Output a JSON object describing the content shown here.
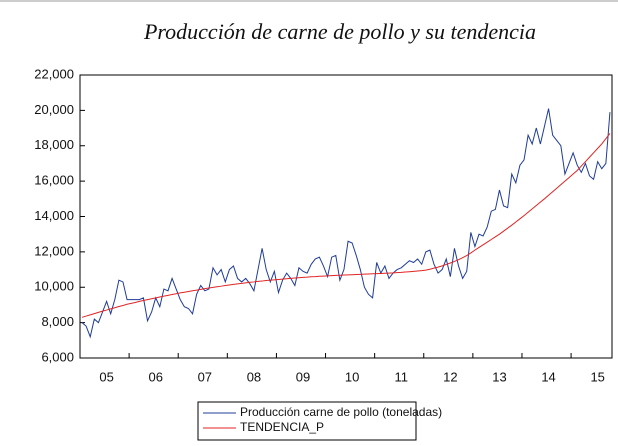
{
  "chart_data": {
    "type": "line",
    "title": "Producción de carne de pollo y su tendencia",
    "categories": [
      null,
      null,
      null,
      null,
      null,
      null,
      "05",
      null,
      null,
      null,
      null,
      null,
      null,
      null,
      null,
      null,
      null,
      null,
      "06",
      null,
      null,
      null,
      null,
      null,
      null,
      null,
      null,
      null,
      null,
      null,
      "07",
      null,
      null,
      null,
      null,
      null,
      null,
      null,
      null,
      null,
      null,
      null,
      "08",
      null,
      null,
      null,
      null,
      null,
      null,
      null,
      null,
      null,
      null,
      null,
      "09",
      null,
      null,
      null,
      null,
      null,
      null,
      null,
      null,
      null,
      null,
      null,
      "10",
      null,
      null,
      null,
      null,
      null,
      null,
      null,
      null,
      null,
      null,
      null,
      "11",
      null,
      null,
      null,
      null,
      null,
      null,
      null,
      null,
      null,
      null,
      null,
      "12",
      null,
      null,
      null,
      null,
      null,
      null,
      null,
      null,
      null,
      null,
      null,
      "13",
      null,
      null,
      null,
      null,
      null,
      null,
      null,
      null,
      null,
      null,
      null,
      "14",
      null,
      null,
      null,
      null,
      null,
      null,
      null,
      null,
      null,
      null,
      null,
      "15",
      null,
      null,
      null
    ],
    "series": [
      {
        "name": "Producción carne de pollo (toneladas)",
        "color": "#1f3c98",
        "values": [
          8000,
          7800,
          7200,
          8200,
          8000,
          8600,
          9200,
          8500,
          9300,
          10400,
          10300,
          9300,
          9300,
          9300,
          9300,
          9400,
          8100,
          8600,
          9400,
          8900,
          9900,
          9800,
          10500,
          9900,
          9300,
          8900,
          8800,
          8500,
          9600,
          10100,
          9800,
          9900,
          11100,
          10700,
          11000,
          10300,
          11000,
          11200,
          10500,
          10300,
          10500,
          10200,
          9800,
          11000,
          12200,
          11000,
          10300,
          10900,
          9700,
          10400,
          10800,
          10500,
          10100,
          11100,
          10900,
          10800,
          11300,
          11600,
          11700,
          11200,
          10600,
          11700,
          11800,
          10400,
          11000,
          12600,
          12500,
          11800,
          11000,
          10000,
          9600,
          9400,
          11400,
          10800,
          11200,
          10500,
          10800,
          11000,
          11100,
          11300,
          11500,
          11400,
          11600,
          11300,
          12000,
          12100,
          11300,
          10800,
          11000,
          11600,
          10600,
          12200,
          11200,
          10500,
          10900,
          13100,
          12300,
          13000,
          12900,
          13400,
          14300,
          14400,
          15500,
          14600,
          14500,
          16400,
          15900,
          16900,
          17200,
          18600,
          18100,
          19000,
          18100,
          19100,
          20100,
          18600,
          18300,
          18000,
          16400,
          17000,
          17600,
          16900,
          16500,
          17000,
          16300,
          16100,
          17100,
          16700,
          17000,
          19900
        ]
      },
      {
        "name": "TENDENCIA_P",
        "color": "#e02424",
        "values": [
          8300,
          8370,
          8440,
          8510,
          8580,
          8650,
          8710,
          8780,
          8840,
          8910,
          8970,
          9040,
          9090,
          9140,
          9200,
          9250,
          9300,
          9350,
          9400,
          9450,
          9500,
          9540,
          9590,
          9630,
          9680,
          9720,
          9760,
          9800,
          9840,
          9880,
          9920,
          9960,
          9990,
          10030,
          10060,
          10100,
          10130,
          10160,
          10190,
          10220,
          10250,
          10280,
          10300,
          10330,
          10350,
          10380,
          10400,
          10420,
          10440,
          10460,
          10480,
          10500,
          10520,
          10540,
          10560,
          10570,
          10590,
          10600,
          10620,
          10630,
          10640,
          10660,
          10670,
          10680,
          10690,
          10700,
          10710,
          10720,
          10730,
          10740,
          10750,
          10760,
          10770,
          10780,
          10790,
          10800,
          10810,
          10830,
          10840,
          10860,
          10880,
          10900,
          10920,
          10940,
          10970,
          11020,
          11080,
          11140,
          11210,
          11290,
          11370,
          11460,
          11560,
          11670,
          11790,
          11940,
          12100,
          12250,
          12400,
          12550,
          12700,
          12850,
          13000,
          13170,
          13340,
          13510,
          13690,
          13870,
          14050,
          14240,
          14430,
          14620,
          14810,
          15000,
          15200,
          15400,
          15600,
          15800,
          16000,
          16200,
          16400,
          16600,
          16850,
          17100,
          17350,
          17600,
          17850,
          18100,
          18400,
          18700
        ]
      }
    ],
    "ylim": [
      6000,
      22000
    ],
    "yticks": [
      {
        "value": 6000,
        "label": "6,000"
      },
      {
        "value": 8000,
        "label": "8,000"
      },
      {
        "value": 10000,
        "label": "10,000"
      },
      {
        "value": 12000,
        "label": "12,000"
      },
      {
        "value": 14000,
        "label": "14,000"
      },
      {
        "value": 16000,
        "label": "16,000"
      },
      {
        "value": 18000,
        "label": "18,000"
      },
      {
        "value": 20000,
        "label": "20,000"
      },
      {
        "value": 22000,
        "label": "22,000"
      }
    ],
    "grid": false
  }
}
